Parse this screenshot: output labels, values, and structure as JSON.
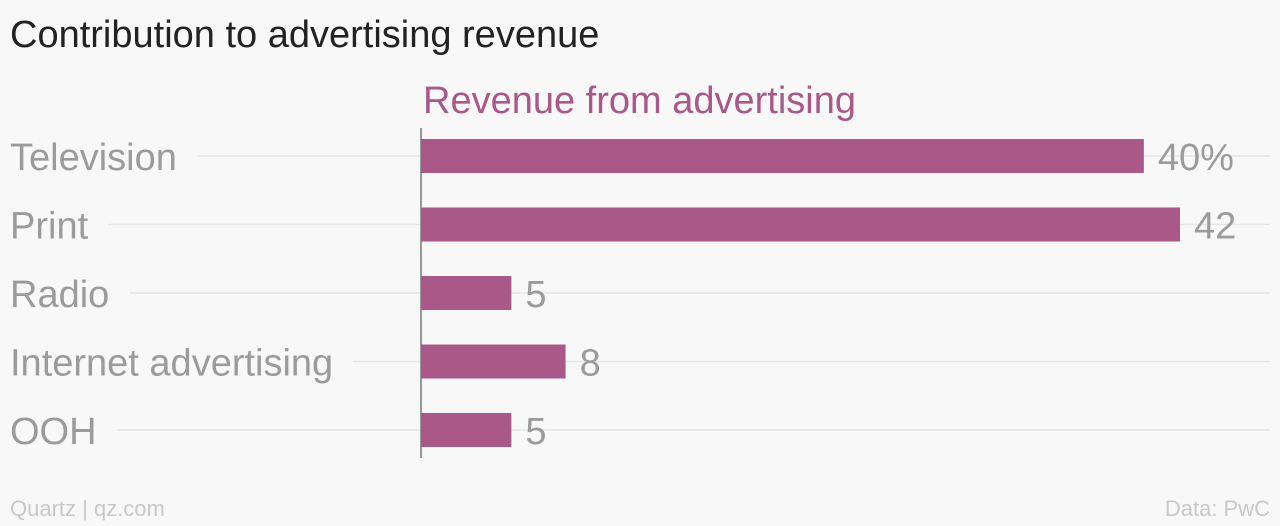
{
  "title": "Contribution to advertising revenue",
  "colors": {
    "bar": "#a95888",
    "series_label": "#a95888",
    "category_label": "#9b9b9b",
    "value_label": "#9b9b9b",
    "gridline": "#e6e6e6",
    "axis": "#777777",
    "footer": "#c8c8c8"
  },
  "chart_data": {
    "type": "bar",
    "orientation": "horizontal",
    "categories": [
      "Television",
      "Print",
      "Radio",
      "Internet advertising",
      "OOH"
    ],
    "series": [
      {
        "name": "Revenue from advertising",
        "values": [
          40,
          42,
          5,
          8,
          5
        ],
        "value_labels": [
          "40%",
          "42",
          "5",
          "8",
          "5"
        ]
      }
    ],
    "xlim": [
      0,
      42
    ],
    "grid": true
  },
  "footer": {
    "source_left": "Quartz | qz.com",
    "source_right": "Data: PwC"
  }
}
